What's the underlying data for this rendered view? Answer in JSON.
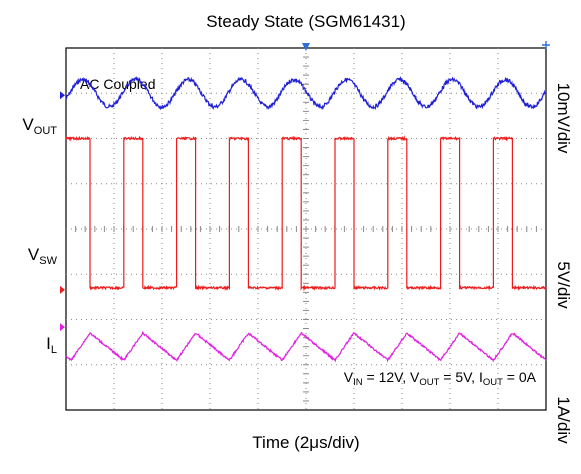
{
  "chart_data": {
    "type": "line",
    "title": "Steady State (SGM61431)",
    "xlabel": "Time (2μs/div)",
    "annotation_top": "AC Coupled",
    "conditions": {
      "vin_sym": "V",
      "vin_sub": "IN",
      "vin_val": " = 12V, ",
      "vout_sym": "V",
      "vout_sub": "OUT",
      "vout_val": " = 5V, ",
      "iout_sym": "I",
      "iout_sub": "OUT",
      "iout_val": " = 0A"
    },
    "grid": {
      "x_divisions": 10,
      "y_divisions": 8,
      "style": "dotted"
    },
    "x": {
      "unit": "μs",
      "per_div": 2,
      "range": [
        0,
        20
      ]
    },
    "channels": [
      {
        "id": "vout",
        "label_main": "V",
        "label_sub": "OUT",
        "scale": "10mV/div",
        "color": "#1f1fd8",
        "waveform": "sine",
        "period_us": 2.2,
        "amplitude_div": 0.3,
        "center_div_from_top": 1.0
      },
      {
        "id": "vsw",
        "label_main": "V",
        "label_sub": "SW",
        "scale": "5V/div",
        "color": "#ee1c1c",
        "waveform": "square",
        "period_us": 2.2,
        "duty": 0.36,
        "high_div_from_top": 2.0,
        "low_div_from_top": 5.3
      },
      {
        "id": "il",
        "label_main": "I",
        "label_sub": "L",
        "scale": "1A/div",
        "color": "#e020e0",
        "waveform": "triangle",
        "period_us": 2.2,
        "duty": 0.36,
        "high_div_from_top": 6.3,
        "low_div_from_top": 6.9
      }
    ]
  }
}
